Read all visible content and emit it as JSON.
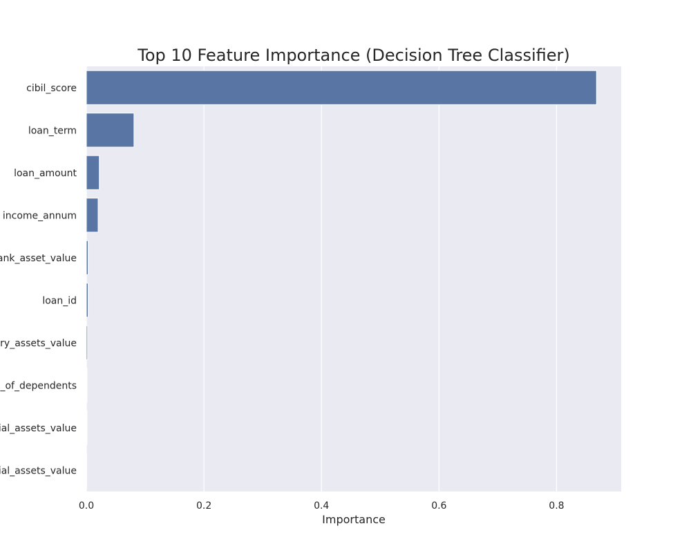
{
  "chart_data": {
    "type": "bar",
    "orientation": "horizontal",
    "title": "Top 10 Feature Importance (Decision Tree Classifier)",
    "xlabel": "Importance",
    "ylabel": "",
    "categories": [
      "cibil_score",
      "loan_term",
      "loan_amount",
      "income_annum",
      "bank_asset_value",
      "loan_id",
      "luxury_assets_value",
      "no_of_dependents",
      "commercial_assets_value",
      "residential_assets_value"
    ],
    "values": [
      0.868,
      0.081,
      0.022,
      0.02,
      0.003,
      0.003,
      0.002,
      0.001,
      0.001,
      0.0005
    ],
    "xlim": [
      0,
      0.91
    ],
    "xticks": [
      0.0,
      0.2,
      0.4,
      0.6,
      0.8
    ],
    "xtick_labels": [
      "0.0",
      "0.2",
      "0.4",
      "0.6",
      "0.8"
    ],
    "grid": true,
    "legend": "none",
    "colors": {
      "bar": "#5975a4",
      "bar_edge": "#ffffff",
      "plot_background": "#eaeaf2",
      "grid": "#ffffff",
      "text": "#262626"
    }
  }
}
